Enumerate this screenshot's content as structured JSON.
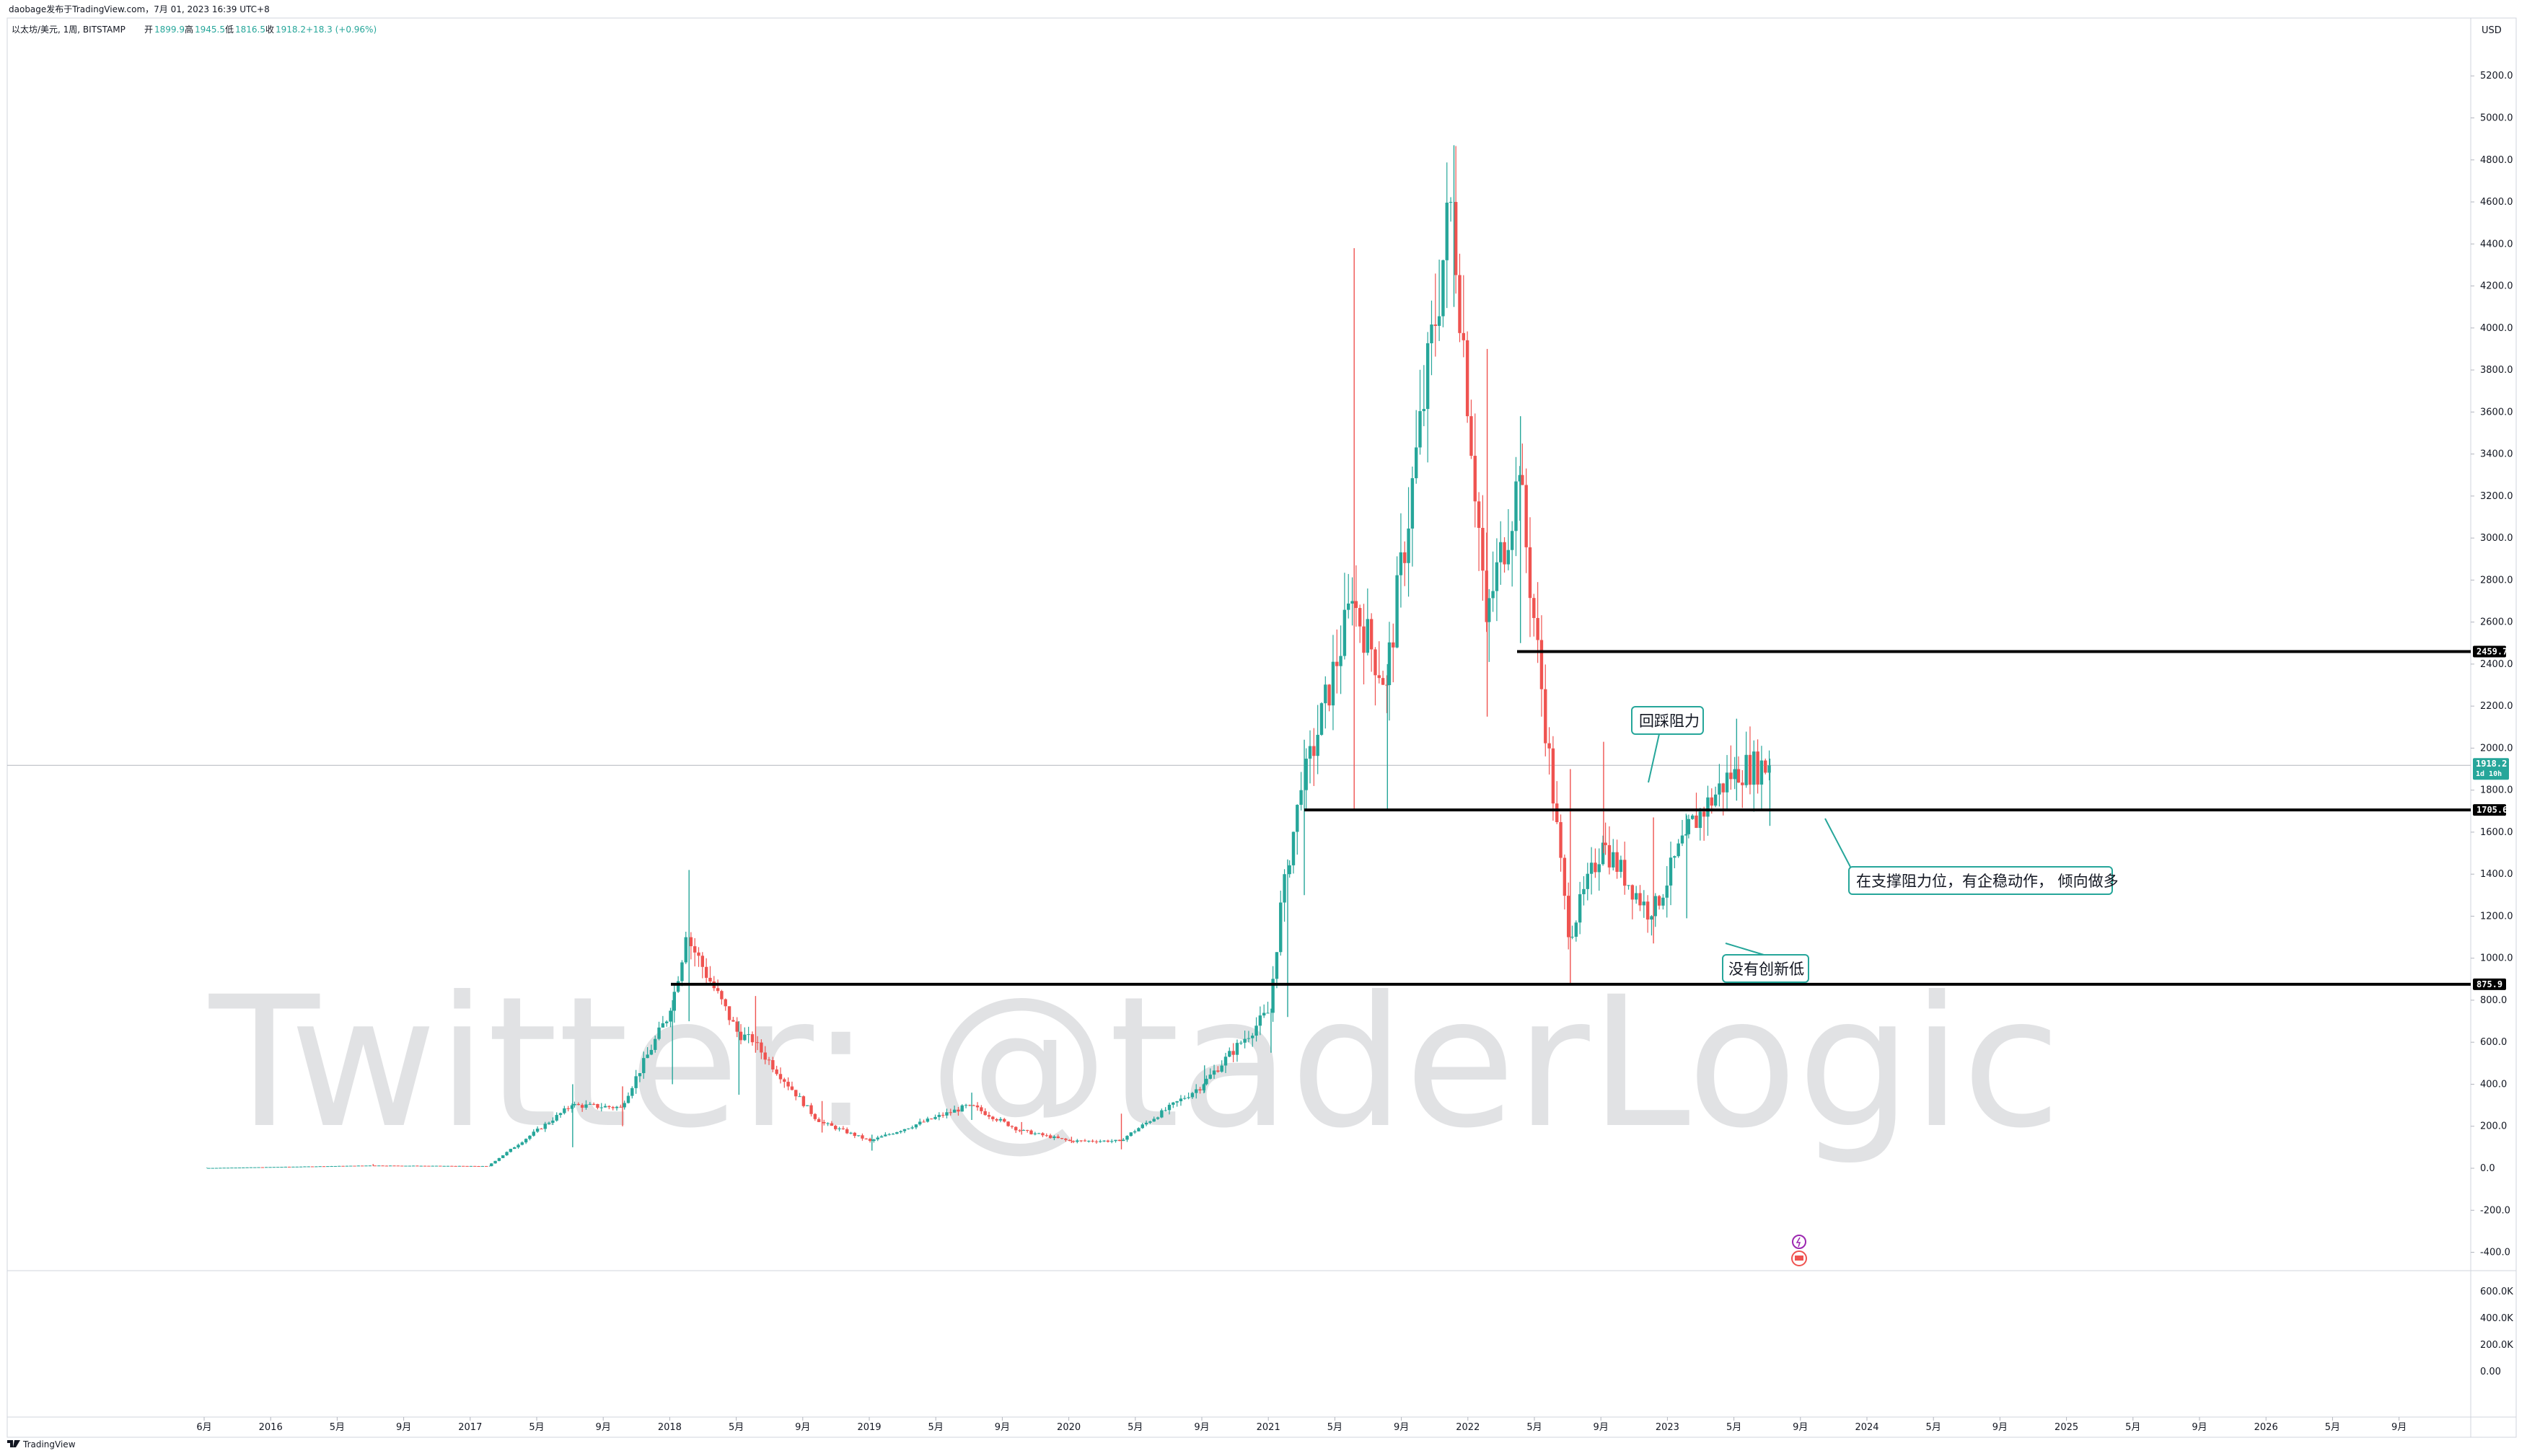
{
  "header": {
    "publisher": "daobage发布于TradingView.com，7月 01, 2023 16:39 UTC+8",
    "symbol": "以太坊/美元, 1周, BITSTAMP",
    "ohlc_open_label": "开",
    "ohlc_open": "1899.9",
    "ohlc_high_label": "高",
    "ohlc_high": "1945.5",
    "ohlc_low_label": "低",
    "ohlc_low": "1816.5",
    "ohlc_close_label": "收",
    "ohlc_close": "1918.2",
    "ohlc_change": "+18.3 (+0.96%)"
  },
  "currency": "USD",
  "footer": {
    "brand": "TradingView"
  },
  "watermark": "Twitter: @taderLogic",
  "colors": {
    "up": "#26a69a",
    "down": "#ef5350",
    "line": "#000000",
    "price_tag": "#26a69a",
    "level_tag": "#000000",
    "grid": "#e6e6e6"
  },
  "icons": {
    "logo": "tradingview-logo-icon",
    "event_1": "flash-event-icon",
    "event_2": "flag-event-icon"
  },
  "chart_data": {
    "type": "candlestick",
    "interval": "1周",
    "ylim": [
      -450,
      5350
    ],
    "y_ticks": [
      "5200.0",
      "5000.0",
      "4800.0",
      "4600.0",
      "4400.0",
      "4200.0",
      "4000.0",
      "3800.0",
      "3600.0",
      "3400.0",
      "3200.0",
      "3000.0",
      "2800.0",
      "2600.0",
      "2400.0",
      "2200.0",
      "2000.0",
      "1800.0",
      "1600.0",
      "1400.0",
      "1200.0",
      "1000.0",
      "800.0",
      "600.0",
      "400.0",
      "200.0",
      "0.0",
      "-200.0",
      "-400.0"
    ],
    "x_ticks": [
      "6月",
      "2016",
      "5月",
      "9月",
      "2017",
      "5月",
      "9月",
      "2018",
      "5月",
      "9月",
      "2019",
      "5月",
      "9月",
      "2020",
      "5月",
      "9月",
      "2021",
      "5月",
      "9月",
      "2022",
      "5月",
      "9月",
      "2023",
      "5月",
      "9月",
      "2024",
      "5月",
      "9月",
      "2025",
      "5月",
      "9月",
      "2026",
      "5月",
      "9月"
    ],
    "volume_ticks": [
      "600.0K",
      "400.0K",
      "200.0K",
      "0.00"
    ],
    "last_price": {
      "value": 1918.2,
      "label": "1918.2",
      "countdown": "1d 10h"
    },
    "levels": [
      {
        "value": 2459.7,
        "label": "2459.7"
      },
      {
        "value": 1705.6,
        "label": "1705.6"
      },
      {
        "value": 875.9,
        "label": "875.9"
      }
    ],
    "annotations": [
      {
        "text": "回踩阻力"
      },
      {
        "text": "在支撑阻力位，有企稳动作， 倾向做多"
      },
      {
        "text": "没有创新低"
      }
    ],
    "ohlc_series_note": "weekly ETH/USD path, key points in USD",
    "key_points": [
      [
        "2015-08",
        1,
        3,
        0.5,
        1
      ],
      [
        "2016-06",
        14,
        20,
        10,
        13
      ],
      [
        "2017-01",
        10,
        12,
        8,
        10
      ],
      [
        "2017-06",
        120,
        400,
        100,
        300
      ],
      [
        "2017-09",
        300,
        390,
        200,
        290
      ],
      [
        "2017-12",
        400,
        800,
        400,
        750
      ],
      [
        "2018-01",
        750,
        1420,
        700,
        1100
      ],
      [
        "2018-04",
        400,
        700,
        350,
        650
      ],
      [
        "2018-05",
        650,
        820,
        550,
        600
      ],
      [
        "2018-09",
        300,
        320,
        170,
        220
      ],
      [
        "2018-12",
        120,
        160,
        84,
        130
      ],
      [
        "2019-06",
        250,
        360,
        230,
        300
      ],
      [
        "2019-09",
        200,
        220,
        160,
        180
      ],
      [
        "2019-12",
        140,
        150,
        120,
        130
      ],
      [
        "2020-03",
        230,
        260,
        90,
        130
      ],
      [
        "2020-08",
        380,
        490,
        360,
        400
      ],
      [
        "2020-12",
        600,
        760,
        550,
        740
      ],
      [
        "2021-01",
        740,
        1470,
        720,
        1400
      ],
      [
        "2021-02",
        1400,
        2040,
        1300,
        1800
      ],
      [
        "2021-05",
        3400,
        4380,
        1700,
        2700
      ],
      [
        "2021-07",
        2000,
        2400,
        1700,
        2300
      ],
      [
        "2021-11",
        4400,
        4870,
        4100,
        4600
      ],
      [
        "2022-01",
        3700,
        3900,
        2150,
        2600
      ],
      [
        "2022-03",
        2600,
        3580,
        2500,
        3300
      ],
      [
        "2022-06",
        1800,
        1900,
        880,
        1100
      ],
      [
        "2022-08",
        1600,
        2030,
        1500,
        1550
      ],
      [
        "2022-11",
        1570,
        1670,
        1070,
        1200
      ],
      [
        "2023-01",
        1200,
        1680,
        1190,
        1590
      ],
      [
        "2023-04",
        1800,
        2140,
        1750,
        1900
      ],
      [
        "2023-06",
        1800,
        1950,
        1630,
        1918.2
      ]
    ]
  }
}
